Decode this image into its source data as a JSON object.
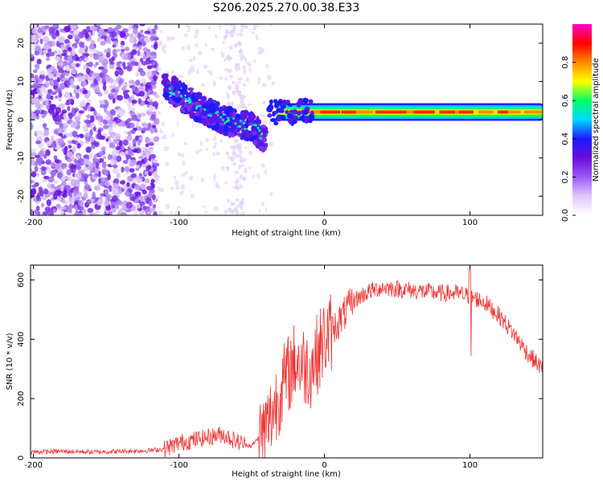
{
  "title": "S206.2025.270.00.38.E33",
  "chart_data": [
    {
      "type": "heatmap",
      "name": "spectrogram",
      "xlabel": "Height of straight line (km)",
      "ylabel": "Frequency (Hz)",
      "xlim": [
        -202,
        150
      ],
      "ylim": [
        -25,
        25
      ],
      "xticks": [
        -200,
        -100,
        0,
        100
      ],
      "yticks": [
        -20,
        -10,
        0,
        10,
        20
      ],
      "colorbar": {
        "label": "Normalized spectral amplitude",
        "range": [
          0,
          1
        ],
        "ticks": [
          0.0,
          0.2,
          0.4,
          0.6,
          0.8
        ],
        "tick_labels": [
          "0.0",
          "0.2",
          "0.4",
          "0.6",
          "0.8"
        ],
        "colors": [
          "#ffffff",
          "#e0c8f8",
          "#9b59f5",
          "#6a0dd8",
          "#1a1aff",
          "#00d8ff",
          "#00ff66",
          "#ffff00",
          "#ff8800",
          "#ff0000",
          "#ff00cc"
        ]
      },
      "features": [
        {
          "description": "broadband noise",
          "x_range": [
            -202,
            -115
          ],
          "y_range": [
            -25,
            25
          ]
        },
        {
          "description": "descending signal",
          "x": [
            -110,
            -90,
            -70,
            -50,
            -40
          ],
          "y": [
            9,
            4,
            0,
            -2,
            -5
          ]
        },
        {
          "description": "steady carrier",
          "x_range": [
            -35,
            150
          ],
          "y": 2
        }
      ]
    },
    {
      "type": "line",
      "name": "snr",
      "xlabel": "Height of straight line (km)",
      "ylabel": "SNR (10 * v/v)",
      "xlim": [
        -202,
        150
      ],
      "ylim": [
        0,
        650
      ],
      "xticks": [
        -200,
        -100,
        0,
        100
      ],
      "yticks": [
        0,
        200,
        400,
        600
      ],
      "color": "#ee3333",
      "series": [
        {
          "name": "SNR",
          "x": [
            -202,
            -180,
            -160,
            -140,
            -120,
            -110,
            -100,
            -90,
            -80,
            -70,
            -60,
            -50,
            -40,
            -30,
            -20,
            -10,
            0,
            10,
            20,
            30,
            40,
            50,
            60,
            70,
            80,
            90,
            100,
            110,
            120,
            130,
            140,
            150
          ],
          "y": [
            20,
            22,
            20,
            22,
            25,
            30,
            50,
            60,
            70,
            80,
            55,
            40,
            100,
            230,
            330,
            300,
            400,
            460,
            530,
            560,
            575,
            570,
            565,
            560,
            555,
            555,
            545,
            525,
            480,
            420,
            350,
            300
          ]
        }
      ]
    }
  ]
}
